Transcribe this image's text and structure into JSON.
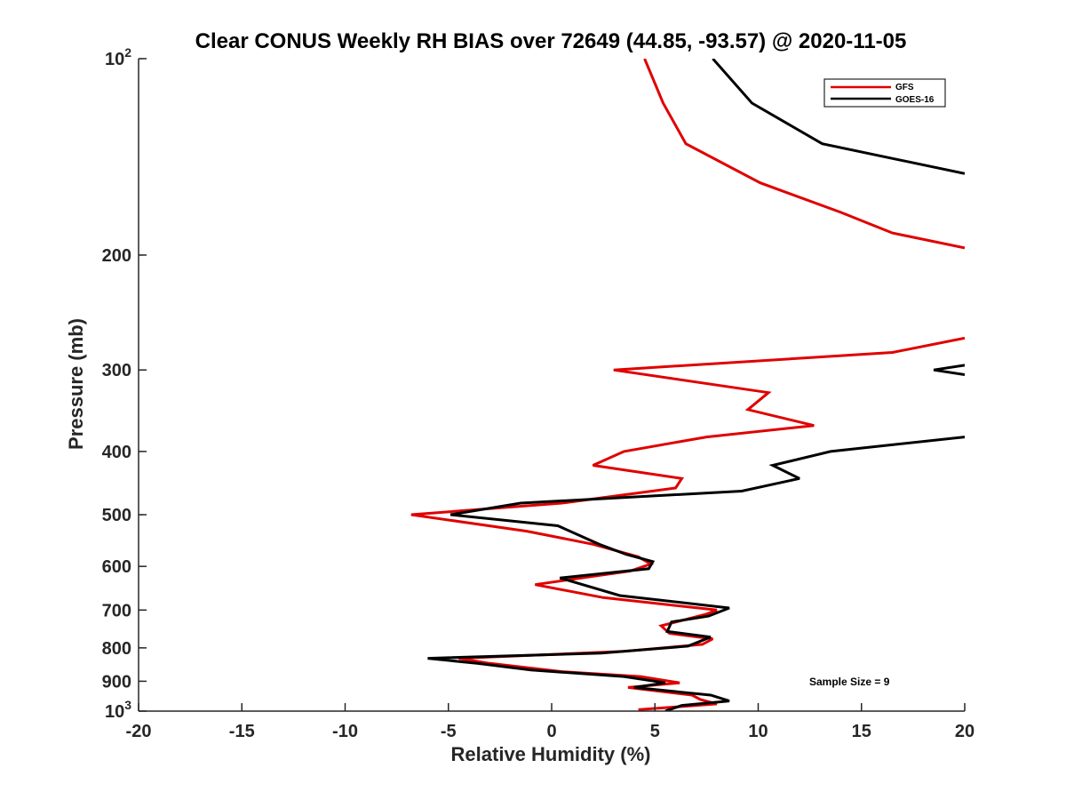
{
  "chart_data": {
    "type": "line",
    "title": "Clear CONUS Weekly RH BIAS over 72649 (44.85, -93.57) @ 2020-11-05",
    "xlabel": "Relative Humidity (%)",
    "ylabel": "Pressure (mb)",
    "xlim": [
      -20,
      20
    ],
    "ylim": [
      100,
      1000
    ],
    "yscale": "log",
    "y_reversed": true,
    "grid": false,
    "legend_position": "top-right",
    "x_ticks": [
      "-20",
      "-15",
      "-10",
      "-5",
      "0",
      "5",
      "10",
      "15",
      "20"
    ],
    "y_ticks": [
      {
        "value": 100,
        "base": "10",
        "exp": "2"
      },
      {
        "value": 200,
        "label": "200"
      },
      {
        "value": 300,
        "label": "300"
      },
      {
        "value": 400,
        "label": "400"
      },
      {
        "value": 500,
        "label": "500"
      },
      {
        "value": 600,
        "label": "600"
      },
      {
        "value": 700,
        "label": "700"
      },
      {
        "value": 800,
        "label": "800"
      },
      {
        "value": 900,
        "label": "900"
      },
      {
        "value": 1000,
        "base": "10",
        "exp": "3"
      }
    ],
    "series": [
      {
        "name": "GFS",
        "color": "#e00000",
        "segments": [
          [
            {
              "x": 4.5,
              "y": 100
            },
            {
              "x": 5.4,
              "y": 117
            },
            {
              "x": 6.5,
              "y": 135
            },
            {
              "x": 10.1,
              "y": 155
            },
            {
              "x": 14.0,
              "y": 172
            },
            {
              "x": 16.5,
              "y": 185
            },
            {
              "x": 20.0,
              "y": 195
            }
          ],
          [
            {
              "x": 20.0,
              "y": 268
            },
            {
              "x": 16.5,
              "y": 282
            },
            {
              "x": 3.0,
              "y": 300
            },
            {
              "x": 10.5,
              "y": 325
            },
            {
              "x": 9.5,
              "y": 345
            },
            {
              "x": 12.7,
              "y": 365
            },
            {
              "x": 7.5,
              "y": 380
            },
            {
              "x": 3.5,
              "y": 400
            },
            {
              "x": 2.0,
              "y": 420
            },
            {
              "x": 6.3,
              "y": 440
            },
            {
              "x": 6.0,
              "y": 455
            },
            {
              "x": 0.5,
              "y": 480
            },
            {
              "x": -6.8,
              "y": 500
            },
            {
              "x": -1.2,
              "y": 530
            },
            {
              "x": 2.0,
              "y": 555
            },
            {
              "x": 4.2,
              "y": 580
            },
            {
              "x": 4.8,
              "y": 595
            },
            {
              "x": 3.8,
              "y": 610
            },
            {
              "x": -0.8,
              "y": 640
            },
            {
              "x": 2.5,
              "y": 670
            },
            {
              "x": 8.0,
              "y": 700
            },
            {
              "x": 7.5,
              "y": 710
            },
            {
              "x": 5.3,
              "y": 740
            },
            {
              "x": 5.7,
              "y": 760
            },
            {
              "x": 7.8,
              "y": 775
            },
            {
              "x": 7.3,
              "y": 790
            },
            {
              "x": 3.5,
              "y": 810
            },
            {
              "x": -4.5,
              "y": 830
            },
            {
              "x": -3.0,
              "y": 845
            },
            {
              "x": 0.5,
              "y": 870
            },
            {
              "x": 4.3,
              "y": 885
            },
            {
              "x": 6.2,
              "y": 905
            },
            {
              "x": 3.7,
              "y": 920
            },
            {
              "x": 6.8,
              "y": 945
            },
            {
              "x": 7.2,
              "y": 960
            },
            {
              "x": 8.0,
              "y": 975
            },
            {
              "x": 4.2,
              "y": 995
            }
          ]
        ]
      },
      {
        "name": "GOES-16",
        "color": "#000000",
        "segments": [
          [
            {
              "x": 7.8,
              "y": 100
            },
            {
              "x": 9.7,
              "y": 117
            },
            {
              "x": 13.1,
              "y": 135
            },
            {
              "x": 20.0,
              "y": 150
            }
          ],
          [
            {
              "x": 20.0,
              "y": 295
            },
            {
              "x": 18.5,
              "y": 300
            },
            {
              "x": 20.0,
              "y": 305
            }
          ],
          [
            {
              "x": 20.0,
              "y": 380
            },
            {
              "x": 13.5,
              "y": 400
            },
            {
              "x": 10.7,
              "y": 420
            },
            {
              "x": 12.0,
              "y": 440
            },
            {
              "x": 9.2,
              "y": 460
            },
            {
              "x": -1.5,
              "y": 480
            },
            {
              "x": -4.9,
              "y": 500
            },
            {
              "x": 0.3,
              "y": 520
            },
            {
              "x": 2.3,
              "y": 555
            },
            {
              "x": 3.6,
              "y": 575
            },
            {
              "x": 4.9,
              "y": 590
            },
            {
              "x": 4.7,
              "y": 605
            },
            {
              "x": 0.4,
              "y": 625
            },
            {
              "x": 1.5,
              "y": 640
            },
            {
              "x": 3.3,
              "y": 665
            },
            {
              "x": 8.6,
              "y": 695
            },
            {
              "x": 7.6,
              "y": 715
            },
            {
              "x": 5.8,
              "y": 730
            },
            {
              "x": 5.6,
              "y": 755
            },
            {
              "x": 7.7,
              "y": 770
            },
            {
              "x": 6.6,
              "y": 795
            },
            {
              "x": 2.4,
              "y": 815
            },
            {
              "x": -6.0,
              "y": 830
            },
            {
              "x": -3.6,
              "y": 845
            },
            {
              "x": -1.0,
              "y": 865
            },
            {
              "x": 3.5,
              "y": 885
            },
            {
              "x": 5.5,
              "y": 905
            },
            {
              "x": 4.0,
              "y": 920
            },
            {
              "x": 7.7,
              "y": 945
            },
            {
              "x": 8.6,
              "y": 965
            },
            {
              "x": 6.3,
              "y": 980
            },
            {
              "x": 5.5,
              "y": 1000
            }
          ]
        ]
      }
    ],
    "annotations": [
      "Sample Size = 9"
    ]
  }
}
